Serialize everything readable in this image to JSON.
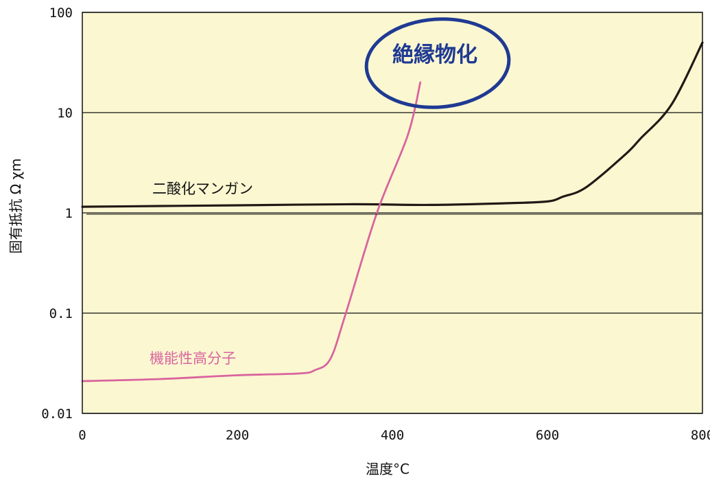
{
  "chart_data": {
    "type": "line",
    "xlabel": "温度°C",
    "ylabel": "固有抵抗 Ω χm",
    "xlim": [
      0,
      800
    ],
    "ylim": [
      0.01,
      100
    ],
    "yscale": "log",
    "grid": "horizontal",
    "x_ticks": [
      0,
      200,
      400,
      600,
      800
    ],
    "x_tick_labels": [
      "0",
      "200",
      "400",
      "600",
      "800"
    ],
    "y_ticks": [
      0.01,
      0.1,
      1,
      10,
      100
    ],
    "y_tick_labels": [
      "0.01",
      "0.1",
      "1",
      "10",
      "100"
    ],
    "series": [
      {
        "name": "二酸化マンガン",
        "color": "#231815",
        "points": [
          [
            0,
            1.15
          ],
          [
            100,
            1.17
          ],
          [
            200,
            1.19
          ],
          [
            350,
            1.22
          ],
          [
            450,
            1.2
          ],
          [
            550,
            1.25
          ],
          [
            600,
            1.3
          ],
          [
            620,
            1.45
          ],
          [
            650,
            1.8
          ],
          [
            700,
            3.8
          ],
          [
            720,
            5.5
          ],
          [
            760,
            12
          ],
          [
            800,
            50
          ]
        ]
      },
      {
        "name": "機能性高分子",
        "color": "#d9649e",
        "points": [
          [
            0,
            0.021
          ],
          [
            100,
            0.022
          ],
          [
            200,
            0.024
          ],
          [
            280,
            0.025
          ],
          [
            300,
            0.027
          ],
          [
            320,
            0.035
          ],
          [
            340,
            0.1
          ],
          [
            380,
            1.0
          ],
          [
            420,
            6.0
          ],
          [
            436,
            20
          ]
        ]
      }
    ],
    "annotations": [
      {
        "text": "絶縁物化",
        "color": "#1f3a93"
      }
    ],
    "background": "#fbf7d1"
  }
}
